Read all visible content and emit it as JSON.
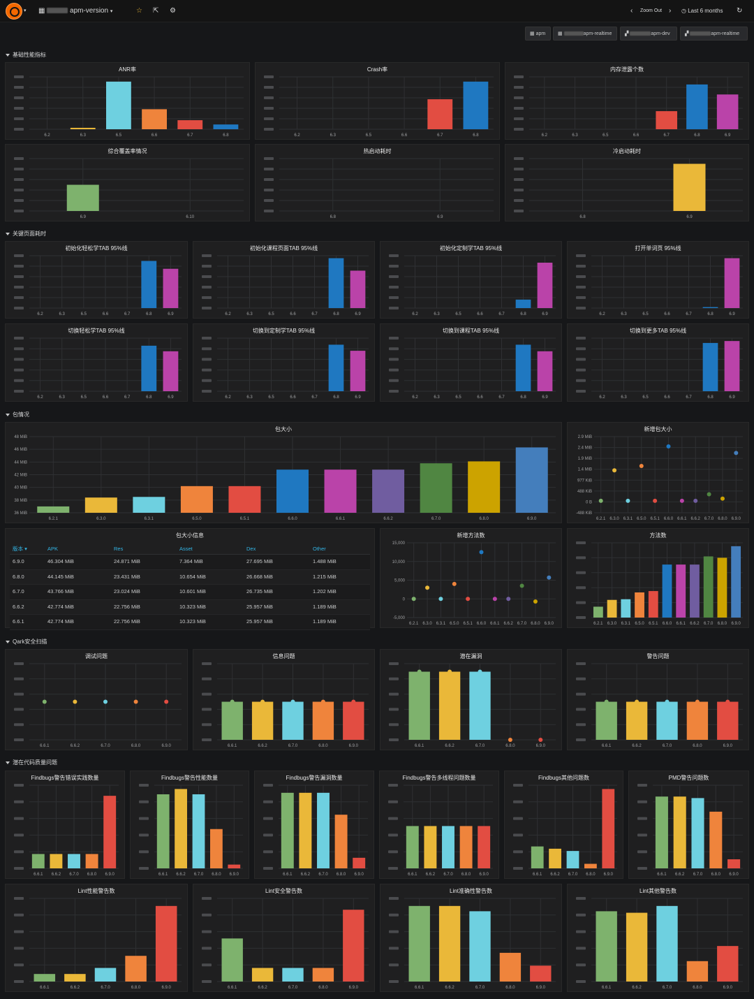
{
  "topbar": {
    "dashboard_title": "apm-version",
    "zoom_out": "Zoom Out",
    "time_range": "Last 6 months"
  },
  "links": [
    {
      "label": "apm"
    },
    {
      "label": "apm-realtime"
    },
    {
      "label": "apm-dev"
    },
    {
      "label": "apm-realtime"
    }
  ],
  "rows": [
    {
      "title": "基础性能指标"
    },
    {
      "title": "关键页面耗时"
    },
    {
      "title": "包情况"
    },
    {
      "title": "Qark安全扫描"
    },
    {
      "title": "潜在代码质量问题"
    }
  ],
  "colors": {
    "green": "#7eb26d",
    "yellow": "#eab839",
    "cyan": "#6ed0e0",
    "orange": "#ef843c",
    "red": "#e24d42",
    "blue": "#1f78c1",
    "purple": "#ba43a9",
    "violet": "#705da0",
    "dkgreen": "#508642",
    "mustard": "#cca300",
    "steel": "#447ebc"
  },
  "panels": [
    {
      "id": "anr",
      "title": "ANR率",
      "type": "bar",
      "categories": [
        "6.2",
        "6.3",
        "6.5",
        "6.6",
        "6.7",
        "6.8"
      ],
      "values": [
        0,
        0.3,
        10,
        4.2,
        1.9,
        1
      ],
      "colors": [
        "green",
        "yellow",
        "cyan",
        "orange",
        "red",
        "blue"
      ],
      "ymax": 11
    },
    {
      "id": "crash",
      "title": "Crash率",
      "type": "bar",
      "categories": [
        "6.2",
        "6.3",
        "6.5",
        "6.6",
        "6.7",
        "6.8"
      ],
      "values": [
        0,
        0,
        0,
        0,
        6.3,
        10
      ],
      "colors": [
        "green",
        "yellow",
        "cyan",
        "orange",
        "red",
        "blue"
      ],
      "ymax": 11
    },
    {
      "id": "leak",
      "title": "内存泄露个数",
      "type": "bar",
      "categories": [
        "6.2",
        "6.3",
        "6.5",
        "6.6",
        "6.7",
        "6.8",
        "6.9"
      ],
      "values": [
        0,
        0,
        0,
        0,
        3.8,
        9.4,
        7.3
      ],
      "colors": [
        "green",
        "yellow",
        "cyan",
        "orange",
        "red",
        "blue",
        "purple"
      ],
      "ymax": 11
    },
    {
      "id": "coverage",
      "title": "综合覆盖率情况",
      "type": "bar",
      "categories": [
        "6.9",
        "6.10"
      ],
      "values": [
        5,
        0
      ],
      "colors": [
        "green",
        "yellow"
      ],
      "ymax": 10
    },
    {
      "id": "hotstart",
      "title": "热启动耗时",
      "type": "bar",
      "categories": [
        "6.8",
        "6.9"
      ],
      "values": [
        0,
        0
      ],
      "colors": [
        "blue",
        "purple"
      ],
      "ymax": 10
    },
    {
      "id": "coldstart",
      "title": "冷启动耗时",
      "type": "bar",
      "categories": [
        "6.8",
        "6.9"
      ],
      "values": [
        0,
        9
      ],
      "colors": [
        "blue",
        "yellow"
      ],
      "ymax": 10
    },
    {
      "id": "p1",
      "title": "初始化轻松学TAB 95%线",
      "type": "bar",
      "categories": [
        "6.2",
        "6.3",
        "6.5",
        "6.6",
        "6.7",
        "6.8",
        "6.9"
      ],
      "values": [
        0,
        0,
        0,
        0,
        0,
        9,
        7.5
      ],
      "colors": [
        "green",
        "yellow",
        "cyan",
        "orange",
        "red",
        "blue",
        "purple"
      ],
      "ymax": 10
    },
    {
      "id": "p2",
      "title": "初始化课程页面TAB 95%线",
      "type": "bar",
      "categories": [
        "6.2",
        "6.3",
        "6.5",
        "6.6",
        "6.7",
        "6.8",
        "6.9"
      ],
      "values": [
        0,
        0,
        0,
        0,
        0,
        10,
        7.5
      ],
      "colors": [
        "green",
        "yellow",
        "cyan",
        "orange",
        "red",
        "blue",
        "purple"
      ],
      "ymax": 10.5
    },
    {
      "id": "p3",
      "title": "初始化定制学TAB 95%线",
      "type": "bar",
      "categories": [
        "6.2",
        "6.3",
        "6.5",
        "6.6",
        "6.7",
        "6.8",
        "6.9"
      ],
      "values": [
        0,
        0,
        0,
        0,
        0,
        1.7,
        9.1
      ],
      "colors": [
        "green",
        "yellow",
        "cyan",
        "orange",
        "red",
        "blue",
        "purple"
      ],
      "ymax": 10.5
    },
    {
      "id": "p4",
      "title": "打开单词页 95%线",
      "type": "bar",
      "categories": [
        "6.2",
        "6.3",
        "6.5",
        "6.6",
        "6.7",
        "6.8",
        "6.9"
      ],
      "values": [
        0,
        0,
        0,
        0,
        0,
        0.2,
        10
      ],
      "colors": [
        "green",
        "yellow",
        "cyan",
        "orange",
        "red",
        "blue",
        "purple"
      ],
      "ymax": 10.5
    },
    {
      "id": "p5",
      "title": "切换轻松学TAB 95%线",
      "type": "bar",
      "categories": [
        "6.2",
        "6.3",
        "6.5",
        "6.6",
        "6.7",
        "6.8",
        "6.9"
      ],
      "values": [
        0,
        0,
        0,
        0,
        0,
        9,
        7.9
      ],
      "colors": [
        "green",
        "yellow",
        "cyan",
        "orange",
        "red",
        "blue",
        "purple"
      ],
      "ymax": 10.5
    },
    {
      "id": "p6",
      "title": "切换到定制学TAB 95%线",
      "type": "bar",
      "categories": [
        "6.2",
        "6.3",
        "6.5",
        "6.6",
        "6.7",
        "6.8",
        "6.9"
      ],
      "values": [
        0,
        0,
        0,
        0,
        0,
        9.2,
        8
      ],
      "colors": [
        "green",
        "yellow",
        "cyan",
        "orange",
        "red",
        "blue",
        "purple"
      ],
      "ymax": 10.5
    },
    {
      "id": "p7",
      "title": "切换到课程TAB 95%线",
      "type": "bar",
      "categories": [
        "6.2",
        "6.3",
        "6.5",
        "6.6",
        "6.7",
        "6.8",
        "6.9"
      ],
      "values": [
        0,
        0,
        0,
        0,
        0,
        9.2,
        7.9
      ],
      "colors": [
        "green",
        "yellow",
        "cyan",
        "orange",
        "red",
        "blue",
        "purple"
      ],
      "ymax": 10.5
    },
    {
      "id": "p8",
      "title": "切换到更多TAB 95%线",
      "type": "bar",
      "categories": [
        "6.2",
        "6.3",
        "6.5",
        "6.6",
        "6.7",
        "6.8",
        "6.9"
      ],
      "values": [
        0,
        0,
        0,
        0,
        0,
        10,
        10.4
      ],
      "colors": [
        "green",
        "yellow",
        "cyan",
        "orange",
        "red",
        "blue",
        "purple"
      ],
      "ymax": 11
    },
    {
      "id": "pkg",
      "title": "包大小",
      "type": "bar",
      "categories": [
        "6.2.1",
        "6.3.0",
        "6.3.1",
        "6.5.0",
        "6.5.1",
        "6.6.0",
        "6.6.1",
        "6.6.2",
        "6.7.0",
        "6.8.0",
        "6.9.0"
      ],
      "values": [
        37,
        38.4,
        38.5,
        40.2,
        40.2,
        42.8,
        42.8,
        42.8,
        43.8,
        44.1,
        46.3
      ],
      "colors": [
        "green",
        "yellow",
        "cyan",
        "orange",
        "red",
        "blue",
        "purple",
        "violet",
        "dkgreen",
        "mustard",
        "steel"
      ],
      "ymin": 36,
      "ymax": 48,
      "yticks": [
        "48 MiB",
        "46 MiB",
        "44 MiB",
        "42 MiB",
        "40 MiB",
        "38 MiB",
        "36 MiB"
      ]
    },
    {
      "id": "pkgdelta",
      "title": "新增包大小",
      "type": "scatter",
      "categories": [
        "6.2.1",
        "6.3.0",
        "6.3.1",
        "6.5.0",
        "6.5.1",
        "6.6.0",
        "6.6.1",
        "6.6.2",
        "6.7.0",
        "6.8.0",
        "6.9.0"
      ],
      "values": [
        0,
        1.4,
        0,
        1.6,
        0,
        2.5,
        0,
        0,
        0.3,
        0.1,
        2.2
      ],
      "colors": [
        "green",
        "yellow",
        "cyan",
        "orange",
        "red",
        "blue",
        "purple",
        "violet",
        "dkgreen",
        "mustard",
        "steel"
      ],
      "ymin": -0.55,
      "ymax": 2.95,
      "yticks": [
        "2.9 MiB",
        "2.4 MiB",
        "1.9 MiB",
        "1.4 MiB",
        "977 KiB",
        "488 KiB",
        "0 B",
        "-488 KiB"
      ]
    },
    {
      "id": "newmethods",
      "title": "新增方法数",
      "type": "scatter",
      "categories": [
        "6.2.1",
        "6.3.0",
        "6.3.1",
        "6.5.0",
        "6.5.1",
        "6.6.0",
        "6.6.1",
        "6.6.2",
        "6.7.0",
        "6.8.0",
        "6.9.0"
      ],
      "values": [
        0,
        3000,
        0,
        4000,
        0,
        12500,
        0,
        0,
        3500,
        -700,
        5700
      ],
      "colors": [
        "green",
        "yellow",
        "cyan",
        "orange",
        "red",
        "blue",
        "purple",
        "violet",
        "dkgreen",
        "mustard",
        "steel"
      ],
      "ymin": -5000,
      "ymax": 15000,
      "yticks": [
        "15,000",
        "10,000",
        "5,000",
        "0",
        "-5,000"
      ]
    },
    {
      "id": "methods",
      "title": "方法数",
      "type": "bar",
      "categories": [
        "6.2.1",
        "6.3.0",
        "6.3.1",
        "6.5.0",
        "6.5.1",
        "6.6.0",
        "6.6.1",
        "6.6.2",
        "6.7.0",
        "6.8.0",
        "6.9.0"
      ],
      "values": [
        1.6,
        2.6,
        2.7,
        3.7,
        3.9,
        7.8,
        7.8,
        7.8,
        9,
        8.8,
        10.5
      ],
      "colors": [
        "green",
        "yellow",
        "cyan",
        "orange",
        "red",
        "blue",
        "purple",
        "violet",
        "dkgreen",
        "mustard",
        "steel"
      ],
      "ymax": 11
    },
    {
      "id": "q1",
      "title": "调试问题",
      "type": "scatter",
      "categories": [
        "6.6.1",
        "6.6.2",
        "6.7.0",
        "6.8.0",
        "6.9.0"
      ],
      "values": [
        0,
        0,
        0,
        0,
        0
      ],
      "colors": [
        "green",
        "yellow",
        "cyan",
        "orange",
        "red"
      ],
      "ymin": -1,
      "ymax": 1
    },
    {
      "id": "q2",
      "title": "信息问题",
      "type": "bar",
      "categories": [
        "6.6.1",
        "6.6.2",
        "6.7.0",
        "6.8.0",
        "6.9.0"
      ],
      "values": [
        5,
        5,
        5,
        5,
        5
      ],
      "colors": [
        "green",
        "yellow",
        "cyan",
        "orange",
        "red"
      ],
      "ymax": 10,
      "dots": true
    },
    {
      "id": "q3",
      "title": "潜在漏洞",
      "type": "bar",
      "categories": [
        "6.6.1",
        "6.6.2",
        "6.7.0",
        "6.8.0",
        "6.9.0"
      ],
      "values": [
        8.5,
        8.5,
        8.5,
        0,
        0
      ],
      "colors": [
        "green",
        "yellow",
        "cyan",
        "orange",
        "red"
      ],
      "ymax": 9.5,
      "dots": true
    },
    {
      "id": "q4",
      "title": "警告问题",
      "type": "bar",
      "categories": [
        "6.6.1",
        "6.6.2",
        "6.7.0",
        "6.8.0",
        "6.9.0"
      ],
      "values": [
        5,
        5,
        5,
        5,
        5
      ],
      "colors": [
        "green",
        "yellow",
        "cyan",
        "orange",
        "red"
      ],
      "ymax": 10,
      "dots": true
    },
    {
      "id": "f1",
      "title": "Findbugs警告错误实践数量",
      "type": "bar",
      "categories": [
        "6.6.1",
        "6.6.2",
        "6.7.0",
        "6.8.0",
        "6.9.0"
      ],
      "values": [
        1.9,
        1.9,
        1.9,
        1.9,
        9.6
      ],
      "colors": [
        "green",
        "yellow",
        "cyan",
        "orange",
        "red"
      ],
      "ymax": 11
    },
    {
      "id": "f2",
      "title": "Findbugs警告性能数量",
      "type": "bar",
      "categories": [
        "6.6.1",
        "6.6.2",
        "6.7.0",
        "6.8.0",
        "6.9.0"
      ],
      "values": [
        9.8,
        10.5,
        9.8,
        5.2,
        0.5
      ],
      "colors": [
        "green",
        "yellow",
        "cyan",
        "orange",
        "red"
      ],
      "ymax": 11
    },
    {
      "id": "f3",
      "title": "Findbugs警告漏洞数量",
      "type": "bar",
      "categories": [
        "6.6.1",
        "6.6.2",
        "6.7.0",
        "6.8.0",
        "6.9.0"
      ],
      "values": [
        10,
        10,
        10,
        7.1,
        1.4
      ],
      "colors": [
        "green",
        "yellow",
        "cyan",
        "orange",
        "red"
      ],
      "ymax": 11
    },
    {
      "id": "f4",
      "title": "Findbugs警告多线程问题数量",
      "type": "bar",
      "categories": [
        "6.6.1",
        "6.6.2",
        "6.7.0",
        "6.8.0",
        "6.9.0"
      ],
      "values": [
        5.6,
        5.6,
        5.6,
        5.6,
        5.6
      ],
      "colors": [
        "green",
        "yellow",
        "cyan",
        "orange",
        "red"
      ],
      "ymax": 11
    },
    {
      "id": "f5",
      "title": "Findbugs其他问题数",
      "type": "bar",
      "categories": [
        "6.6.1",
        "6.6.2",
        "6.7.0",
        "6.8.0",
        "6.9.0"
      ],
      "values": [
        2.9,
        2.6,
        2.3,
        0.6,
        10.5
      ],
      "colors": [
        "green",
        "yellow",
        "cyan",
        "orange",
        "red"
      ],
      "ymax": 11
    },
    {
      "id": "f6",
      "title": "PMD警告问题数",
      "type": "bar",
      "categories": [
        "6.6.1",
        "6.6.2",
        "6.7.0",
        "6.8.0",
        "6.9.0"
      ],
      "values": [
        9.5,
        9.5,
        9.3,
        7.5,
        1.2
      ],
      "colors": [
        "green",
        "yellow",
        "cyan",
        "orange",
        "red"
      ],
      "ymax": 11
    },
    {
      "id": "l1",
      "title": "Lint性能警告数",
      "type": "bar",
      "categories": [
        "6.6.1",
        "6.6.2",
        "6.7.0",
        "6.8.0",
        "6.9.0"
      ],
      "values": [
        1,
        1,
        1.8,
        3.4,
        10
      ],
      "colors": [
        "green",
        "yellow",
        "cyan",
        "orange",
        "red"
      ],
      "ymax": 11
    },
    {
      "id": "l2",
      "title": "Lint安全警告数",
      "type": "bar",
      "categories": [
        "6.6.1",
        "6.6.2",
        "6.7.0",
        "6.8.0",
        "6.9.0"
      ],
      "values": [
        5.7,
        1.8,
        1.8,
        1.8,
        9.5
      ],
      "colors": [
        "green",
        "yellow",
        "cyan",
        "orange",
        "red"
      ],
      "ymax": 11
    },
    {
      "id": "l3",
      "title": "Lint准确性警告数",
      "type": "bar",
      "categories": [
        "6.6.1",
        "6.6.2",
        "6.7.0",
        "6.8.0",
        "6.9.0"
      ],
      "values": [
        10,
        10,
        9.3,
        3.8,
        2.1
      ],
      "colors": [
        "green",
        "yellow",
        "cyan",
        "orange",
        "red"
      ],
      "ymax": 11
    },
    {
      "id": "l4",
      "title": "Lint其他警告数",
      "type": "bar",
      "categories": [
        "6.6.1",
        "6.6.2",
        "6.7.0",
        "6.8.0",
        "6.9.0"
      ],
      "values": [
        9.3,
        9.1,
        10,
        2.7,
        4.7
      ],
      "colors": [
        "green",
        "yellow",
        "cyan",
        "orange",
        "red"
      ],
      "ymax": 11
    }
  ],
  "size_table": {
    "title": "包大小信息",
    "columns": [
      "版本",
      "APK",
      "Res",
      "Asset",
      "Dex",
      "Other"
    ],
    "rows": [
      [
        "6.9.0",
        "46.304 MiB",
        "24.871 MiB",
        "7.364 MiB",
        "27.695 MiB",
        "1.488 MiB"
      ],
      [
        "6.8.0",
        "44.145 MiB",
        "23.431 MiB",
        "10.654 MiB",
        "26.668 MiB",
        "1.215 MiB"
      ],
      [
        "6.7.0",
        "43.766 MiB",
        "23.024 MiB",
        "10.601 MiB",
        "26.735 MiB",
        "1.202 MiB"
      ],
      [
        "6.6.2",
        "42.774 MiB",
        "22.756 MiB",
        "10.323 MiB",
        "25.957 MiB",
        "1.189 MiB"
      ],
      [
        "6.6.1",
        "42.774 MiB",
        "22.756 MiB",
        "10.323 MiB",
        "25.957 MiB",
        "1.189 MiB"
      ]
    ]
  }
}
